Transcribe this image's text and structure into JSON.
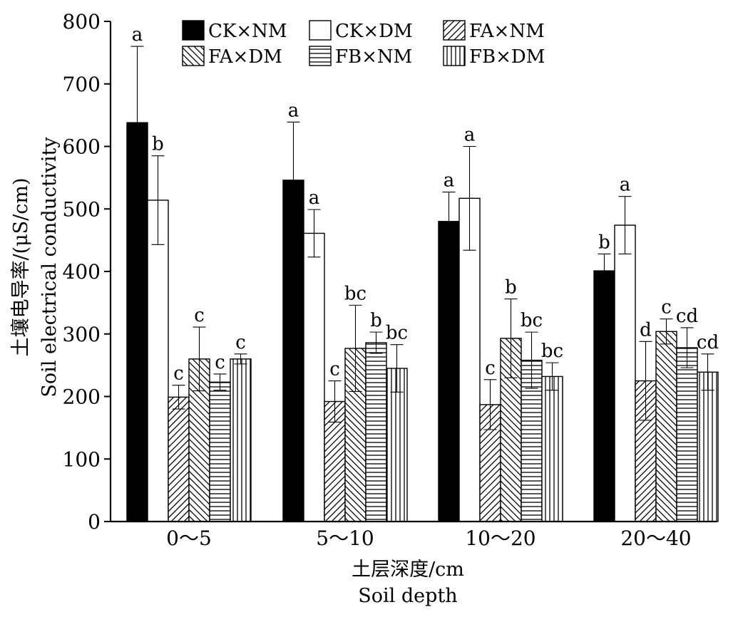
{
  "chart_data": {
    "type": "bar",
    "ylabel_cn": "土壤电导率/(μS/cm)",
    "ylabel_en": "Soil electrical conductivity",
    "xlabel_cn": "土层深度/cm",
    "xlabel_en": "Soil depth",
    "ylim": [
      0,
      800
    ],
    "yticks": [
      "0",
      "100",
      "200",
      "300",
      "400",
      "500",
      "600",
      "700",
      "800"
    ],
    "categories": [
      "0～5",
      "5～10",
      "10～20",
      "20～40"
    ],
    "series": [
      {
        "name": "CK×NM",
        "pattern": "solid-black",
        "values": [
          638,
          546,
          480,
          401
        ],
        "errors": [
          122,
          93,
          47,
          27
        ],
        "letters": [
          "a",
          "a",
          "a",
          "b"
        ]
      },
      {
        "name": "CK×DM",
        "pattern": "white",
        "values": [
          514,
          461,
          517,
          474
        ],
        "errors": [
          71,
          38,
          83,
          46
        ],
        "letters": [
          "b",
          "a",
          "a",
          "a"
        ]
      },
      {
        "name": "FA×NM",
        "pattern": "diag-right",
        "values": [
          199,
          192,
          187,
          225
        ],
        "errors": [
          19,
          33,
          40,
          63
        ],
        "letters": [
          "c",
          "c",
          "c",
          "d"
        ]
      },
      {
        "name": "FA×DM",
        "pattern": "diag-left",
        "values": [
          260,
          277,
          293,
          304
        ],
        "errors": [
          51,
          69,
          63,
          20
        ],
        "letters": [
          "c",
          "bc",
          "b",
          "c"
        ]
      },
      {
        "name": "FB×NM",
        "pattern": "horizontal",
        "values": [
          223,
          286,
          258,
          278
        ],
        "errors": [
          13,
          17,
          45,
          32
        ],
        "letters": [
          "c",
          "b",
          "bc",
          "cd"
        ]
      },
      {
        "name": "FB×DM",
        "pattern": "vertical",
        "values": [
          260,
          245,
          232,
          239
        ],
        "errors": [
          8,
          38,
          22,
          29
        ],
        "letters": [
          "c",
          "bc",
          "bc",
          "cd"
        ]
      }
    ]
  }
}
